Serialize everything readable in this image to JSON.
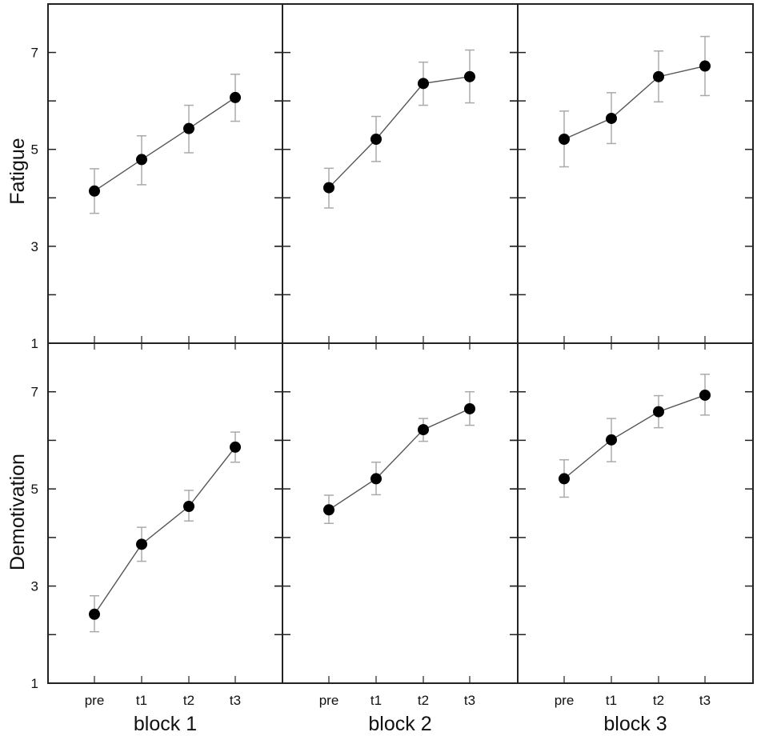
{
  "chart_data": {
    "type": "line",
    "layout": "2x3 facet grid (rows = measure, columns = block), shared axes, error bars",
    "categories": [
      "pre",
      "t1",
      "t2",
      "t3"
    ],
    "ylim": [
      1,
      8
    ],
    "yticks": [
      1,
      3,
      5,
      7
    ],
    "yminor_ticks": [
      2,
      4,
      6
    ],
    "grid": false,
    "legend": null,
    "colors": {
      "line": "#555555",
      "marker": "#000000",
      "errorbar": "#aaaaaa",
      "frame": "#222222"
    },
    "rows": [
      {
        "ylabel": "Fatigue"
      },
      {
        "ylabel": "Demotivation"
      }
    ],
    "columns": [
      {
        "xlabel": "block 1"
      },
      {
        "xlabel": "block 2"
      },
      {
        "xlabel": "block 3"
      }
    ],
    "panels": [
      {
        "row": "Fatigue",
        "block": "block 1",
        "values": [
          4.14,
          4.79,
          5.43,
          6.07
        ],
        "err_upper": [
          4.6,
          5.28,
          5.91,
          6.55
        ],
        "err_lower": [
          3.68,
          4.27,
          4.93,
          5.58
        ]
      },
      {
        "row": "Fatigue",
        "block": "block 2",
        "values": [
          4.21,
          5.21,
          6.36,
          6.5
        ],
        "err_upper": [
          4.61,
          5.68,
          6.8,
          7.05
        ],
        "err_lower": [
          3.79,
          4.75,
          5.91,
          5.96
        ]
      },
      {
        "row": "Fatigue",
        "block": "block 3",
        "values": [
          5.21,
          5.64,
          6.5,
          6.72
        ],
        "err_upper": [
          5.79,
          6.17,
          7.03,
          7.33
        ],
        "err_lower": [
          4.64,
          5.12,
          5.98,
          6.11
        ]
      },
      {
        "row": "Demotivation",
        "block": "block 1",
        "values": [
          2.42,
          3.86,
          4.64,
          5.86
        ],
        "err_upper": [
          2.8,
          4.21,
          4.97,
          6.17
        ],
        "err_lower": [
          2.06,
          3.51,
          4.34,
          5.55
        ]
      },
      {
        "row": "Demotivation",
        "block": "block 2",
        "values": [
          4.57,
          5.21,
          6.22,
          6.65
        ],
        "err_upper": [
          4.87,
          5.55,
          6.45,
          7.0
        ],
        "err_lower": [
          4.29,
          4.88,
          5.98,
          6.31
        ]
      },
      {
        "row": "Demotivation",
        "block": "block 3",
        "values": [
          5.21,
          6.01,
          6.59,
          6.93
        ],
        "err_upper": [
          5.6,
          6.45,
          6.92,
          7.36
        ],
        "err_lower": [
          4.83,
          5.56,
          6.26,
          6.52
        ]
      }
    ]
  }
}
